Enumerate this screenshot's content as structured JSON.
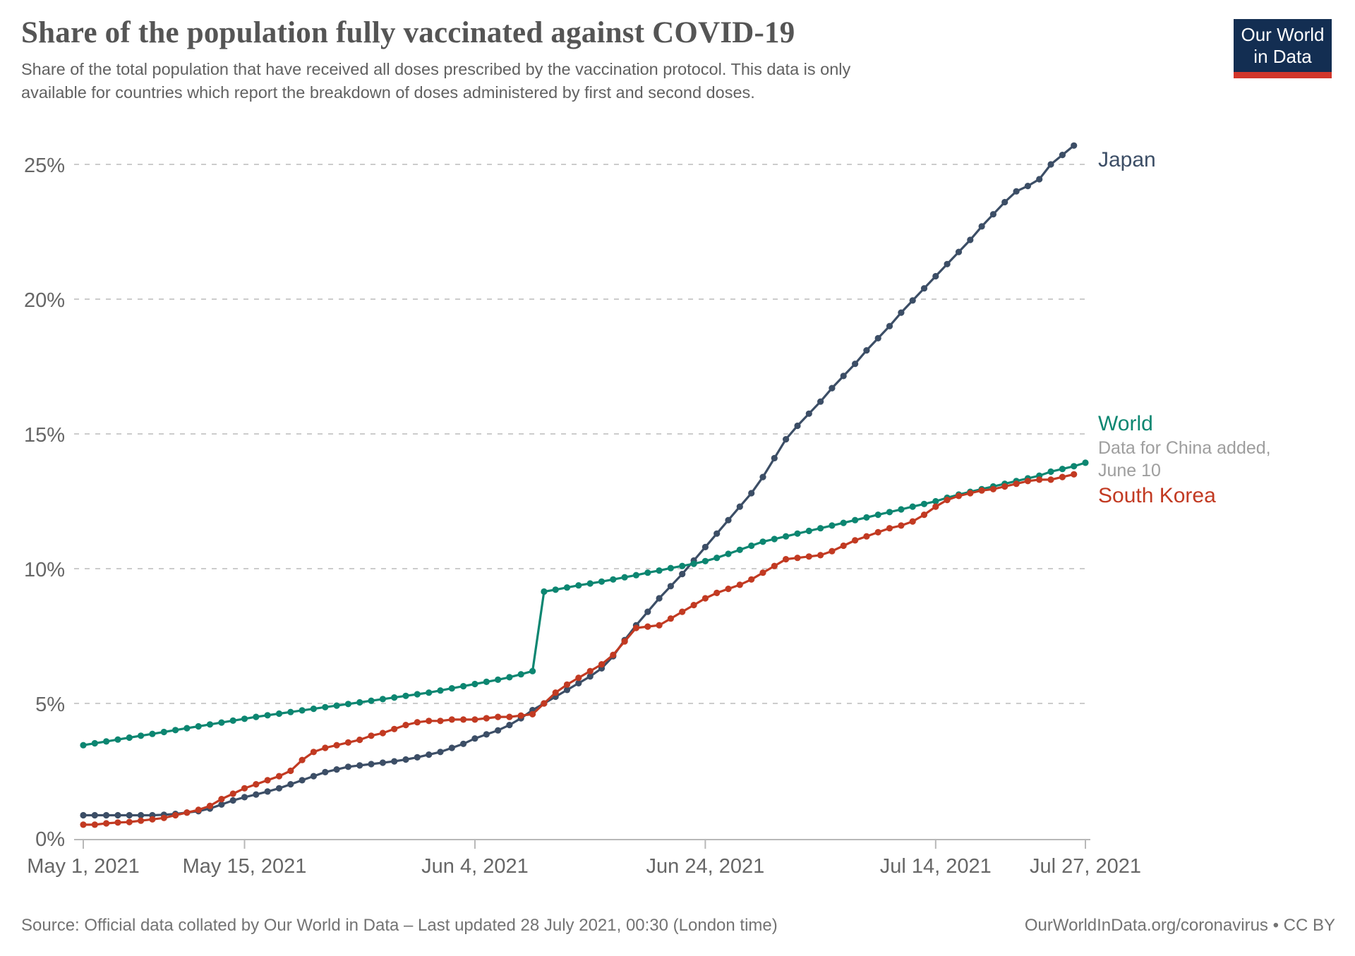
{
  "header": {
    "title": "Share of the population fully vaccinated against COVID-19",
    "subtitle_lines": [
      "Share of the total population that have received all doses prescribed by the vaccination protocol. This data is only",
      "available for countries which report the breakdown of doses administered by first and second doses."
    ]
  },
  "logo": {
    "line1": "Our World",
    "line2": "in Data"
  },
  "footer": {
    "source": "Source: Official data collated by Our World in Data – Last updated 28 July 2021, 00:30 (London time)",
    "license": "OurWorldInData.org/coronavirus • CC BY"
  },
  "colors": {
    "japan": "#3C4E66",
    "world": "#0C8671",
    "south_korea": "#C23A22",
    "logo_bg": "#132E52",
    "logo_bar": "#D2362B"
  },
  "chart_data": {
    "type": "line",
    "title": "Share of the population fully vaccinated against COVID-19",
    "xlabel": "",
    "ylabel": "",
    "x_unit": "days since May 1, 2021",
    "x_range": [
      "May 1, 2021",
      "Jul 27, 2021"
    ],
    "ylim": [
      0,
      26.5
    ],
    "grid": "dashed horizontal",
    "legend_position": "right of line ends",
    "xticks": [
      {
        "label": "May 1, 2021",
        "day": 0
      },
      {
        "label": "May 15, 2021",
        "day": 14
      },
      {
        "label": "Jun 4, 2021",
        "day": 34
      },
      {
        "label": "Jun 24, 2021",
        "day": 54
      },
      {
        "label": "Jul 14, 2021",
        "day": 74
      },
      {
        "label": "Jul 27, 2021",
        "day": 87
      }
    ],
    "yticks": [
      {
        "label": "0%",
        "value": 0
      },
      {
        "label": "5%",
        "value": 5
      },
      {
        "label": "10%",
        "value": 10
      },
      {
        "label": "15%",
        "value": 15
      },
      {
        "label": "20%",
        "value": 20
      },
      {
        "label": "25%",
        "value": 25
      }
    ],
    "series": [
      {
        "name": "Japan",
        "color": "#3C4E66",
        "start_day": 0,
        "values": [
          0.85,
          0.85,
          0.85,
          0.85,
          0.85,
          0.85,
          0.85,
          0.87,
          0.9,
          0.95,
          1.0,
          1.1,
          1.25,
          1.4,
          1.52,
          1.62,
          1.73,
          1.85,
          2.0,
          2.15,
          2.3,
          2.45,
          2.55,
          2.65,
          2.7,
          2.75,
          2.8,
          2.85,
          2.92,
          3.0,
          3.1,
          3.2,
          3.35,
          3.5,
          3.7,
          3.85,
          4.0,
          4.2,
          4.45,
          4.75,
          5.0,
          5.25,
          5.5,
          5.75,
          6.0,
          6.3,
          6.75,
          7.35,
          7.9,
          8.4,
          8.9,
          9.35,
          9.8,
          10.3,
          10.8,
          11.3,
          11.8,
          12.3,
          12.8,
          13.4,
          14.1,
          14.8,
          15.3,
          15.75,
          16.2,
          16.7,
          17.15,
          17.6,
          18.1,
          18.55,
          19.0,
          19.5,
          19.95,
          20.4,
          20.85,
          21.3,
          21.75,
          22.2,
          22.7,
          23.15,
          23.6,
          24.0,
          24.2,
          24.45,
          25.0,
          25.35,
          25.7
        ]
      },
      {
        "name": "World",
        "color": "#0C8671",
        "start_day": 0,
        "annotation": [
          "Data for China added,",
          "June 10"
        ],
        "values": [
          3.45,
          3.52,
          3.59,
          3.66,
          3.73,
          3.8,
          3.87,
          3.94,
          4.01,
          4.08,
          4.15,
          4.22,
          4.29,
          4.36,
          4.43,
          4.5,
          4.56,
          4.62,
          4.68,
          4.74,
          4.8,
          4.86,
          4.92,
          4.98,
          5.04,
          5.1,
          5.16,
          5.22,
          5.28,
          5.34,
          5.4,
          5.48,
          5.56,
          5.64,
          5.72,
          5.8,
          5.88,
          5.97,
          6.08,
          6.2,
          9.15,
          9.22,
          9.3,
          9.38,
          9.45,
          9.52,
          9.6,
          9.68,
          9.76,
          9.85,
          9.93,
          10.02,
          10.1,
          10.18,
          10.28,
          10.4,
          10.55,
          10.7,
          10.85,
          11.0,
          11.1,
          11.2,
          11.3,
          11.4,
          11.5,
          11.6,
          11.7,
          11.8,
          11.9,
          12.0,
          12.1,
          12.2,
          12.3,
          12.4,
          12.5,
          12.63,
          12.75,
          12.85,
          12.95,
          13.05,
          13.15,
          13.25,
          13.35,
          13.45,
          13.6,
          13.7,
          13.8,
          13.93
        ]
      },
      {
        "name": "South Korea",
        "color": "#C23A22",
        "start_day": 0,
        "values": [
          0.5,
          0.5,
          0.55,
          0.58,
          0.6,
          0.65,
          0.7,
          0.75,
          0.85,
          0.95,
          1.05,
          1.2,
          1.45,
          1.65,
          1.85,
          2.0,
          2.15,
          2.3,
          2.5,
          2.9,
          3.2,
          3.35,
          3.45,
          3.55,
          3.65,
          3.8,
          3.9,
          4.05,
          4.2,
          4.3,
          4.35,
          4.35,
          4.4,
          4.4,
          4.4,
          4.45,
          4.5,
          4.5,
          4.55,
          4.6,
          5.0,
          5.4,
          5.7,
          5.95,
          6.2,
          6.45,
          6.8,
          7.3,
          7.8,
          7.85,
          7.9,
          8.15,
          8.4,
          8.65,
          8.9,
          9.1,
          9.25,
          9.4,
          9.6,
          9.85,
          10.1,
          10.35,
          10.4,
          10.45,
          10.5,
          10.65,
          10.85,
          11.05,
          11.2,
          11.35,
          11.5,
          11.6,
          11.75,
          12.0,
          12.3,
          12.55,
          12.7,
          12.8,
          12.9,
          12.95,
          13.05,
          13.15,
          13.25,
          13.3,
          13.3,
          13.4,
          13.5
        ]
      }
    ]
  }
}
